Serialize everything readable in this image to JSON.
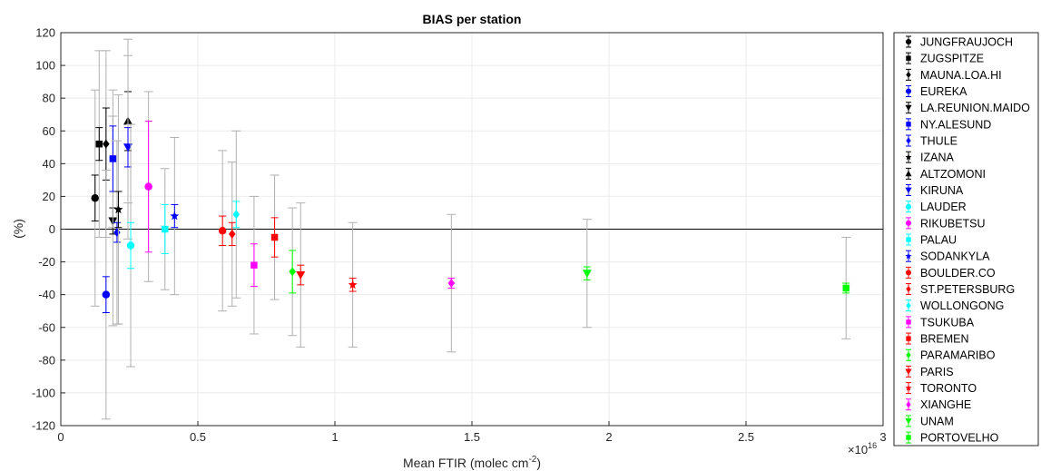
{
  "chart_data": {
    "type": "scatter",
    "title": "BIAS per station",
    "xlabel": "Mean FTIR (molec cm",
    "xlabel_sup": "-2",
    "xlabel_close": ")",
    "ylabel": "(%)",
    "x_exponent_base": "×10",
    "x_exponent_power": "16",
    "xlim": [
      0,
      3
    ],
    "ylim": [
      -120,
      120
    ],
    "xticks": [
      "0",
      "0.5",
      "1",
      "1.5",
      "2",
      "2.5",
      "3"
    ],
    "yticks": [
      "120",
      "100",
      "80",
      "60",
      "40",
      "20",
      "0",
      "-20",
      "-40",
      "-60",
      "-80",
      "-100",
      "-120"
    ],
    "grid": true,
    "zero_line": true,
    "legend_position": "outside-right",
    "x_units": "x 1e16 molec cm^-2",
    "series": [
      {
        "name": "JUNGFRAUJOCH",
        "color": "#000000",
        "marker": "circle",
        "x": 0.125,
        "y": 19,
        "err_small": 14,
        "err_big": 66
      },
      {
        "name": "ZUGSPITZE",
        "color": "#000000",
        "marker": "square",
        "x": 0.14,
        "y": 52,
        "err_small": 10,
        "err_big": 57
      },
      {
        "name": "MAUNA.LOA.HI",
        "color": "#000000",
        "marker": "diamond",
        "x": 0.165,
        "y": 52,
        "err_small": 22,
        "err_big": 57
      },
      {
        "name": "EUREKA",
        "color": "#0000ff",
        "marker": "circle",
        "x": 0.165,
        "y": -40,
        "err_small": 11,
        "err_big": 76
      },
      {
        "name": "LA.REUNION.MAIDO",
        "color": "#000000",
        "marker": "triangle-down",
        "x": 0.19,
        "y": 5,
        "err_small": 8,
        "err_big": 64
      },
      {
        "name": "NY.ALESUND",
        "color": "#0000ff",
        "marker": "square",
        "x": 0.19,
        "y": 43,
        "err_small": 20,
        "err_big": 42
      },
      {
        "name": "THULE",
        "color": "#0000ff",
        "marker": "diamond",
        "x": 0.205,
        "y": -2,
        "err_small": 6,
        "err_big": 56
      },
      {
        "name": "IZANA",
        "color": "#000000",
        "marker": "star",
        "x": 0.21,
        "y": 12,
        "err_small": 11,
        "err_big": 70
      },
      {
        "name": "ALTZOMONI",
        "color": "#000000",
        "marker": "triangle-up",
        "x": 0.245,
        "y": 66,
        "err_small": 18,
        "err_big": 50
      },
      {
        "name": "KIRUNA",
        "color": "#0000ff",
        "marker": "triangle-down",
        "x": 0.245,
        "y": 50,
        "err_small": 12,
        "err_big": 56
      },
      {
        "name": "LAUDER",
        "color": "#00ffff",
        "marker": "circle",
        "x": 0.255,
        "y": -10,
        "err_small": 14,
        "err_big": 74
      },
      {
        "name": "RIKUBETSU",
        "color": "#ff00ff",
        "marker": "circle",
        "x": 0.32,
        "y": 26,
        "err_small": 40,
        "err_big": 58
      },
      {
        "name": "PALAU",
        "color": "#00ffff",
        "marker": "square",
        "x": 0.38,
        "y": 0,
        "err_small": 15,
        "err_big": 37
      },
      {
        "name": "SODANKYLA",
        "color": "#0000ff",
        "marker": "star",
        "x": 0.415,
        "y": 8,
        "err_small": 7,
        "err_big": 48
      },
      {
        "name": "BOULDER.CO",
        "color": "#ff0000",
        "marker": "circle",
        "x": 0.59,
        "y": -1,
        "err_small": 9,
        "err_big": 49
      },
      {
        "name": "ST.PETERSBURG",
        "color": "#ff0000",
        "marker": "diamond",
        "x": 0.625,
        "y": -3,
        "err_small": 7,
        "err_big": 44
      },
      {
        "name": "WOLLONGONG",
        "color": "#00ffff",
        "marker": "diamond",
        "x": 0.64,
        "y": 9,
        "err_small": 8,
        "err_big": 51
      },
      {
        "name": "TSUKUBA",
        "color": "#ff00ff",
        "marker": "square",
        "x": 0.705,
        "y": -22,
        "err_small": 13,
        "err_big": 42
      },
      {
        "name": "BREMEN",
        "color": "#ff0000",
        "marker": "square",
        "x": 0.78,
        "y": -5,
        "err_small": 12,
        "err_big": 38
      },
      {
        "name": "PARAMARIBO",
        "color": "#00ff00",
        "marker": "diamond",
        "x": 0.845,
        "y": -26,
        "err_small": 13,
        "err_big": 39
      },
      {
        "name": "PARIS",
        "color": "#ff0000",
        "marker": "triangle-down",
        "x": 0.875,
        "y": -28,
        "err_small": 6,
        "err_big": 44
      },
      {
        "name": "TORONTO",
        "color": "#ff0000",
        "marker": "star",
        "x": 1.065,
        "y": -34,
        "err_small": 4,
        "err_big": 38
      },
      {
        "name": "XIANGHE",
        "color": "#ff00ff",
        "marker": "diamond",
        "x": 1.425,
        "y": -33,
        "err_small": 3,
        "err_big": 42
      },
      {
        "name": "UNAM",
        "color": "#00ff00",
        "marker": "triangle-down",
        "x": 1.92,
        "y": -27,
        "err_small": 4,
        "err_big": 33
      },
      {
        "name": "PORTOVELHO",
        "color": "#00ff00",
        "marker": "square",
        "x": 2.865,
        "y": -36,
        "err_small": 3,
        "err_big": 31
      }
    ]
  }
}
